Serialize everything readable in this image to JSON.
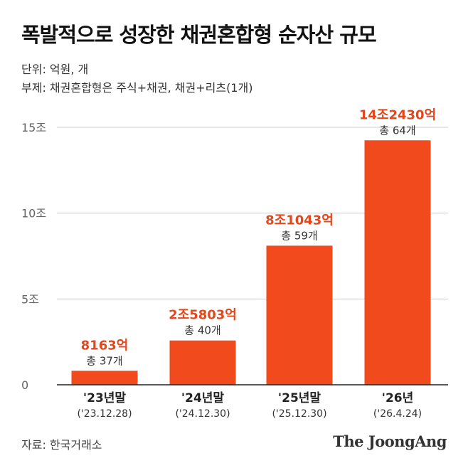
{
  "title": "폭발적으로 성장한 채권혼합형 순자산 규모",
  "unit_line": "단위: 억원, 개",
  "note_line": "부제: 채권혼합형은 주식+채권, 채권+리츠(1개)",
  "source": "자료: 한국거래소",
  "logo": "The JoongAng",
  "colors": {
    "bar": "#f04a1d",
    "value_label": "#e4471c",
    "count_label": "#333333",
    "axis_label": "#666666",
    "grid": "#cccccc",
    "baseline": "#222222"
  },
  "chart_data": {
    "type": "bar",
    "categories": [
      "'23년말",
      "'24년말",
      "'25년말",
      "'26년"
    ],
    "dates": [
      "('23.12.28)",
      "('24.12.30)",
      "('25.12.30)",
      "('26.4.24)"
    ],
    "values": [
      8163,
      25803,
      81043,
      142430
    ],
    "value_labels": [
      "8163억",
      "2조5803억",
      "8조1043억",
      "14조2430억"
    ],
    "count_labels": [
      "총 37개",
      "총 40개",
      "총 59개",
      "총 64개"
    ],
    "y_ticks": [
      0,
      50000,
      100000,
      150000
    ],
    "y_tick_labels": [
      "0",
      "5조",
      "10조",
      "15조"
    ],
    "ylim": [
      0,
      150000
    ],
    "grid": true,
    "title": "폭발적으로 성장한 채권혼합형 순자산 규모",
    "xlabel": "",
    "ylabel": ""
  }
}
